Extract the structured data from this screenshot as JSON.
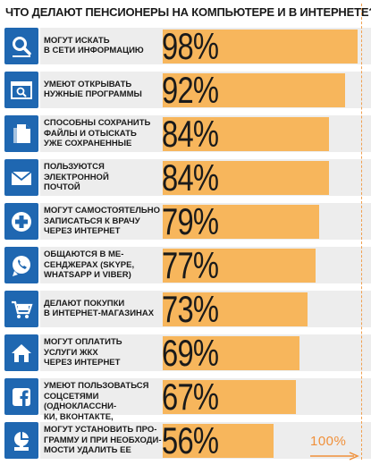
{
  "title": "ЧТО ДЕЛАЮТ ПЕНСИОНЕРЫ НА КОМПЬЮТЕРЕ И В ИНТЕРНЕТЕ? %",
  "hundred_label": "100%",
  "colors": {
    "icon_bg": "#1f67b1",
    "bar": "#f7b65c",
    "band": "#ededed",
    "guide": "#f0a050"
  },
  "chart_data": {
    "type": "bar",
    "orientation": "horizontal",
    "title": "ЧТО ДЕЛАЮТ ПЕНСИОНЕРЫ НА КОМПЬЮТЕРЕ И В ИНТЕРНЕТЕ? %",
    "xlim": [
      0,
      100
    ],
    "categories": [
      "МОГУТ ИСКАТЬ\nВ СЕТИ ИНФОРМАЦИЮ",
      "УМЕЮТ ОТКРЫВАТЬ\nНУЖНЫЕ ПРОГРАММЫ",
      "СПОСОБНЫ СОХРАНИТЬ\nФАЙЛЫ И ОТЫСКАТЬ\nУЖЕ СОХРАНЕННЫЕ",
      "ПОЛЬЗУЮТСЯ\nЭЛЕКТРОННОЙ\nПОЧТОЙ",
      "МОГУТ САМОСТОЯТЕЛЬНО\nЗАПИСАТЬСЯ К ВРАЧУ\nЧЕРЕЗ ИНТЕРНЕТ",
      "ОБЩАЮТСЯ В МЕ-\nСЕНДЖЕРАХ (SKYPE,\nWHATSAPP И VIBER)",
      "ДЕЛАЮТ ПОКУПКИ\nВ ИНТЕРНЕТ-МАГАЗИНАХ",
      "МОГУТ ОПЛАТИТЬ\nУСЛУГИ ЖКХ\nЧЕРЕЗ ИНТЕРНЕТ",
      "УМЕЮТ ПОЛЬЗОВАТЬСЯ\nСОЦСЕТЯМИ (ОДНОКЛАССНИ-\nКИ, ВКОНТАКТЕ, FACEBOOK)",
      "МОГУТ УСТАНОВИТЬ ПРО-\nГРАММУ И ПРИ НЕОБХОДИ-\nМОСТИ УДАЛИТЬ ЕЕ"
    ],
    "values": [
      98,
      92,
      84,
      84,
      79,
      77,
      73,
      69,
      67,
      56
    ],
    "value_labels": [
      "98%",
      "92%",
      "84%",
      "84%",
      "79%",
      "77%",
      "73%",
      "69%",
      "67%",
      "56%"
    ],
    "icons": [
      "search-icon",
      "browser-search-icon",
      "documents-icon",
      "envelope-icon",
      "medical-cross-icon",
      "whatsapp-icon",
      "shopping-cart-icon",
      "house-icon",
      "facebook-icon",
      "install-icon"
    ]
  }
}
